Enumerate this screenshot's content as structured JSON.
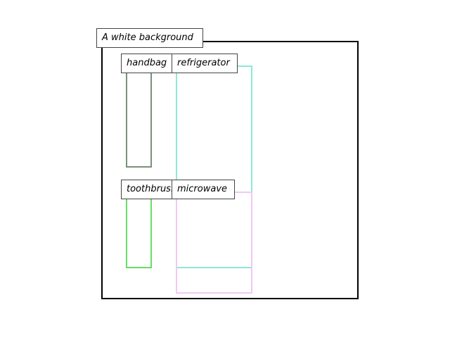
{
  "caption": "A white background",
  "regions": [
    {
      "id": "handbag",
      "label": "handbag",
      "color": "#7a917a"
    },
    {
      "id": "refrigerator",
      "label": "refrigerator",
      "color": "#8de8d8"
    },
    {
      "id": "toothbrush",
      "label": "toothbrush",
      "color": "#66dd66"
    },
    {
      "id": "microwave",
      "label": "microwave",
      "color": "#f2c8f2"
    }
  ],
  "frame_color": "#000000"
}
